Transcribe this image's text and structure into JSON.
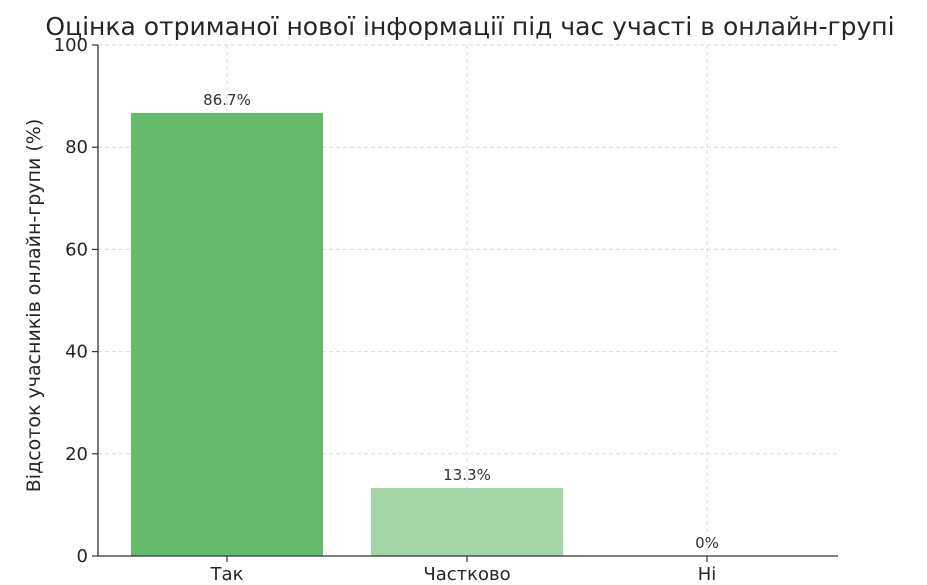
{
  "chart_data": {
    "type": "bar",
    "title": "Оцінка отриманої нової інформації під час участі в онлайн-групі",
    "xlabel": "",
    "ylabel": "Відсоток учасників онлайн-групи (%)",
    "ylim": [
      0,
      100
    ],
    "yticks": [
      0,
      20,
      40,
      60,
      80,
      100
    ],
    "grid": true,
    "categories": [
      "Так",
      "Частково",
      "Ні"
    ],
    "values": [
      86.7,
      13.3,
      0
    ],
    "data_labels": [
      "86.7%",
      "13.3%",
      "0%"
    ],
    "colors": [
      "#66bb6a",
      "#a5d6a7",
      "#e8f5e9"
    ]
  }
}
